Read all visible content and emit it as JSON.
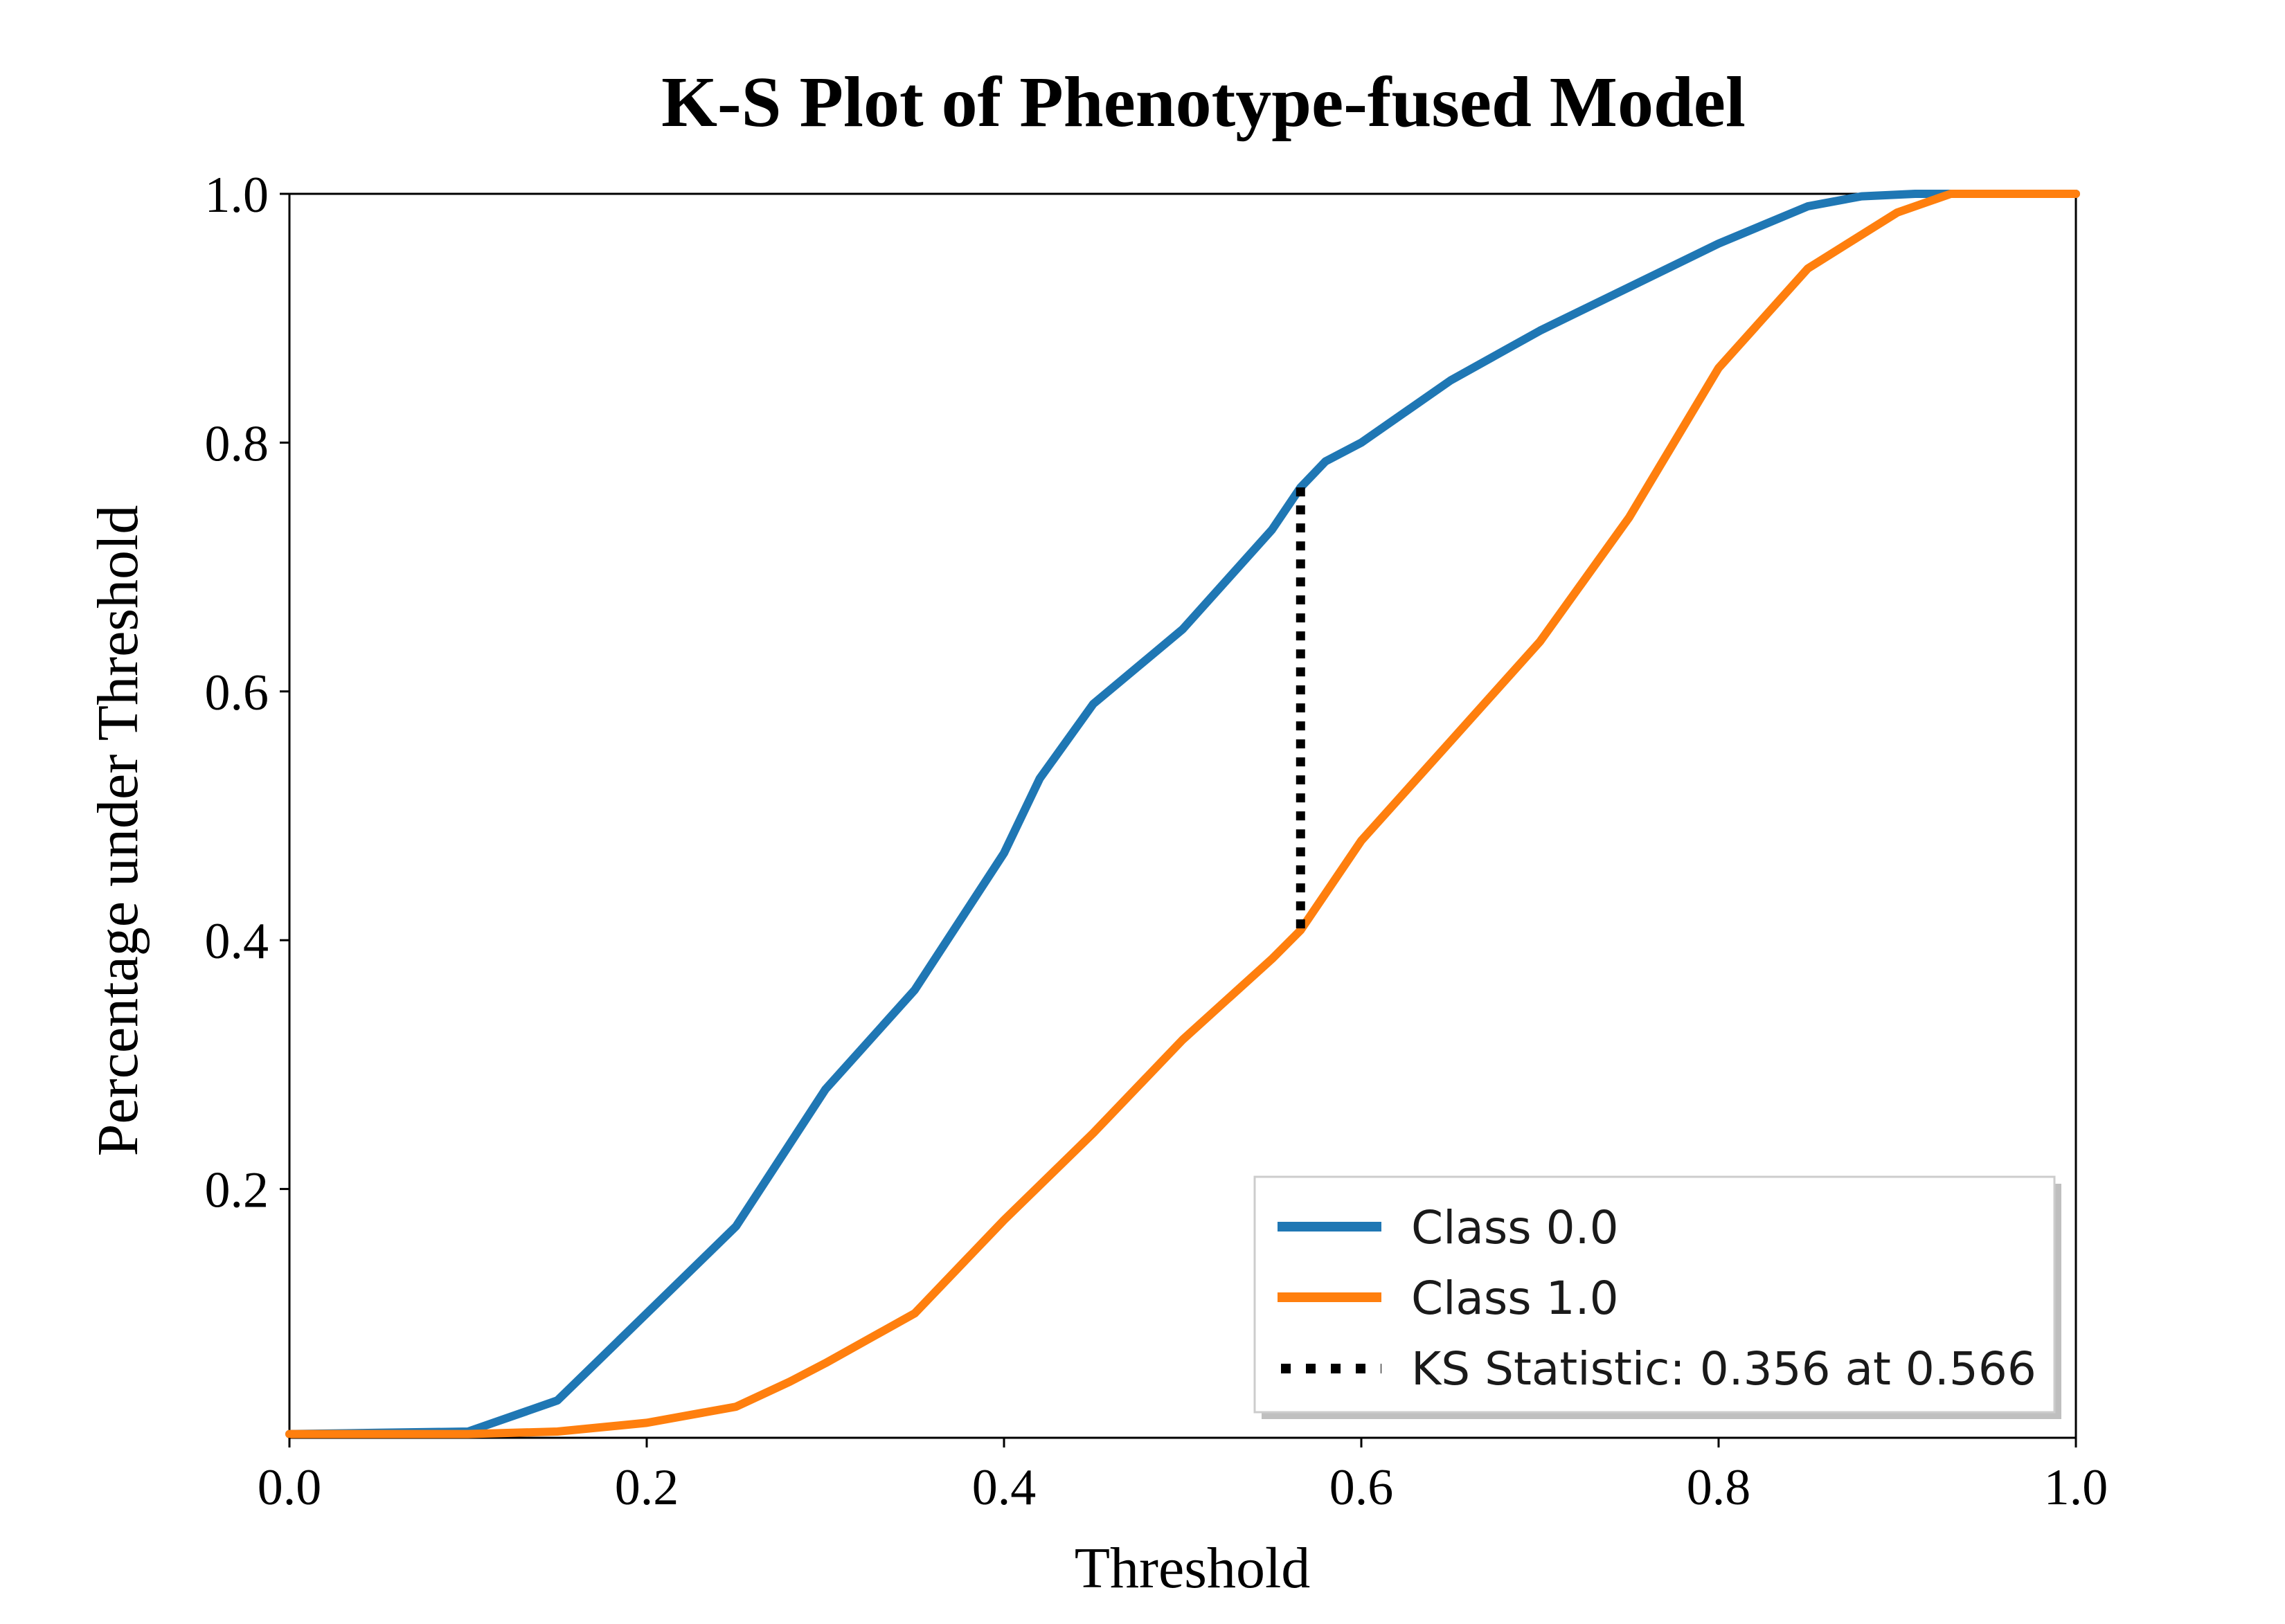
{
  "chart_data": {
    "type": "line",
    "title": "K-S Plot of Phenotype-fused Model",
    "xlabel": "Threshold",
    "ylabel": "Percentage under Threshold",
    "xlim": [
      0.0,
      1.0
    ],
    "ylim": [
      0.0,
      1.0
    ],
    "x_ticks": [
      "0.0",
      "0.2",
      "0.4",
      "0.6",
      "0.8",
      "1.0"
    ],
    "y_ticks": [
      "0.2",
      "0.4",
      "0.6",
      "0.8",
      "1.0"
    ],
    "grid": false,
    "legend_position": "bottom-right",
    "series": [
      {
        "name": "Class 0.0",
        "color": "#1f77b4",
        "x": [
          0.0,
          0.05,
          0.1,
          0.11,
          0.15,
          0.2,
          0.25,
          0.3,
          0.35,
          0.4,
          0.42,
          0.45,
          0.5,
          0.55,
          0.566,
          0.58,
          0.6,
          0.65,
          0.7,
          0.75,
          0.8,
          0.85,
          0.88,
          0.91,
          0.95,
          1.0
        ],
        "y": [
          0.003,
          0.004,
          0.005,
          0.01,
          0.03,
          0.1,
          0.17,
          0.28,
          0.36,
          0.47,
          0.53,
          0.59,
          0.65,
          0.73,
          0.764,
          0.785,
          0.8,
          0.85,
          0.89,
          0.925,
          0.96,
          0.99,
          0.998,
          1.0,
          1.0,
          1.0
        ]
      },
      {
        "name": "Class 1.0",
        "color": "#ff7f0e",
        "x": [
          0.0,
          0.1,
          0.15,
          0.2,
          0.25,
          0.28,
          0.3,
          0.35,
          0.4,
          0.45,
          0.5,
          0.55,
          0.566,
          0.6,
          0.65,
          0.7,
          0.75,
          0.8,
          0.85,
          0.9,
          0.93,
          1.0
        ],
        "y": [
          0.003,
          0.003,
          0.005,
          0.012,
          0.025,
          0.045,
          0.06,
          0.1,
          0.175,
          0.245,
          0.32,
          0.385,
          0.408,
          0.48,
          0.56,
          0.64,
          0.74,
          0.86,
          0.94,
          0.985,
          1.0,
          1.0
        ]
      }
    ],
    "ks_line": {
      "name": "KS Statistic: 0.356 at 0.566",
      "x": 0.566,
      "y_from": 0.408,
      "y_to": 0.764,
      "color": "#000000"
    }
  }
}
